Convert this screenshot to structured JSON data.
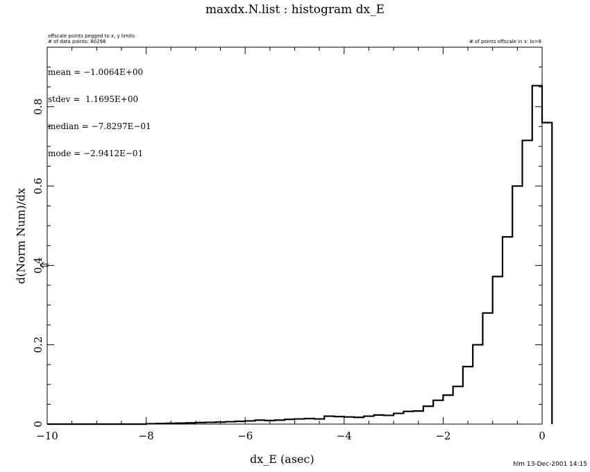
{
  "chart_data": {
    "type": "bar",
    "title": "maxdx.N.list : histogram dx_E",
    "xlabel": "dx_E (asec)",
    "ylabel": "d(Norm Num)/dx",
    "xlim": [
      -10,
      0
    ],
    "ylim": [
      0,
      0.95
    ],
    "x_ticks": [
      -10,
      -8,
      -6,
      -4,
      -2,
      0
    ],
    "x_tick_labels": [
      "−10",
      "−8",
      "−6",
      "−4",
      "−2",
      "0"
    ],
    "y_ticks": [
      0,
      0.2,
      0.4,
      0.6,
      0.8
    ],
    "y_tick_labels": [
      "0",
      "0.2",
      "0.4",
      "0.6",
      "0.8"
    ],
    "bin_width": 0.2,
    "bin_start": -10,
    "values": [
      0.0,
      0.0,
      0.0,
      0.0,
      0.0,
      0.0,
      0.0,
      0.0,
      0.0,
      0.0,
      0.001,
      0.0015,
      0.002,
      0.0025,
      0.003,
      0.004,
      0.0045,
      0.005,
      0.006,
      0.007,
      0.008,
      0.01,
      0.009,
      0.01,
      0.012,
      0.013,
      0.014,
      0.013,
      0.02,
      0.019,
      0.018,
      0.017,
      0.02,
      0.023,
      0.022,
      0.027,
      0.032,
      0.033,
      0.045,
      0.06,
      0.073,
      0.095,
      0.145,
      0.2,
      0.28,
      0.372,
      0.472,
      0.6,
      0.715,
      0.853,
      0.76
    ],
    "grid": false,
    "annotations": {
      "offscale_note": "offscale points pegged to x, y limits",
      "num_points": "# of data points: 80298",
      "offscale_count": "# of points offscale in x: lo=8",
      "stats": [
        "mean = −1.0064E+00",
        "stdev =  1.1695E+00",
        "median = −7.8297E−01",
        "mode = −2.9412E−01"
      ],
      "footer": "hlm 13-Dec-2001 14:15"
    }
  }
}
